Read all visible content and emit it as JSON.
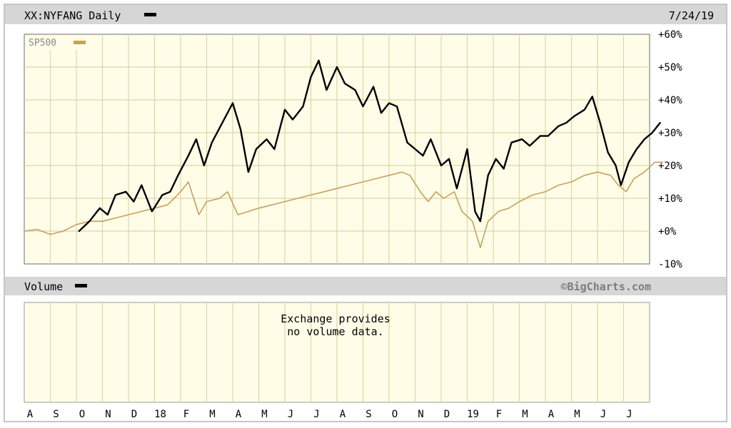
{
  "header": {
    "symbol_title": "XX:NYFANG Daily",
    "date": "7/24/19"
  },
  "legend": {
    "compare_label": "SP500"
  },
  "volume": {
    "label": "Volume",
    "message_line1": "Exchange provides",
    "message_line2": "no volume data.",
    "credit": "©BigCharts.com"
  },
  "colors": {
    "price_line": "#000000",
    "sp500_line": "#c8a05a",
    "plot_bg": "#fffde8",
    "grid": "#dcd7a6",
    "bar_bg": "#d4d4d4"
  },
  "chart_data": {
    "type": "line",
    "title": "XX:NYFANG Daily",
    "x_tick_labels": [
      "A",
      "S",
      "O",
      "N",
      "D",
      "18",
      "F",
      "M",
      "A",
      "M",
      "J",
      "J",
      "A",
      "S",
      "O",
      "N",
      "D",
      "19",
      "F",
      "M",
      "A",
      "M",
      "J",
      "J"
    ],
    "y_tick_labels": [
      "+60%",
      "+50%",
      "+40%",
      "+30%",
      "+20%",
      "+10%",
      "+0%",
      "-10%"
    ],
    "ylim": [
      -10,
      60
    ],
    "y_unit": "percent change",
    "grid": true,
    "legend_position": "top-left",
    "series": [
      {
        "name": "XX:NYFANG",
        "color": "#000000",
        "points": [
          [
            2.1,
            0
          ],
          [
            2.5,
            3
          ],
          [
            2.9,
            7
          ],
          [
            3.2,
            5
          ],
          [
            3.5,
            11
          ],
          [
            3.9,
            12
          ],
          [
            4.2,
            9
          ],
          [
            4.5,
            14
          ],
          [
            4.9,
            6
          ],
          [
            5.3,
            11
          ],
          [
            5.6,
            12
          ],
          [
            5.9,
            17
          ],
          [
            6.3,
            23
          ],
          [
            6.6,
            28
          ],
          [
            6.9,
            20
          ],
          [
            7.2,
            27
          ],
          [
            7.6,
            33
          ],
          [
            8.0,
            39
          ],
          [
            8.3,
            31
          ],
          [
            8.6,
            18
          ],
          [
            8.9,
            25
          ],
          [
            9.3,
            28
          ],
          [
            9.6,
            25
          ],
          [
            10.0,
            37
          ],
          [
            10.3,
            34
          ],
          [
            10.7,
            38
          ],
          [
            11.0,
            47
          ],
          [
            11.3,
            52
          ],
          [
            11.6,
            43
          ],
          [
            12.0,
            50
          ],
          [
            12.3,
            45
          ],
          [
            12.7,
            43
          ],
          [
            13.0,
            38
          ],
          [
            13.4,
            44
          ],
          [
            13.7,
            36
          ],
          [
            14.0,
            39
          ],
          [
            14.3,
            38
          ],
          [
            14.7,
            27
          ],
          [
            15.0,
            25
          ],
          [
            15.3,
            23
          ],
          [
            15.6,
            28
          ],
          [
            16.0,
            20
          ],
          [
            16.3,
            22
          ],
          [
            16.6,
            13
          ],
          [
            17.0,
            25
          ],
          [
            17.3,
            6
          ],
          [
            17.5,
            3
          ],
          [
            17.8,
            17
          ],
          [
            18.1,
            22
          ],
          [
            18.4,
            19
          ],
          [
            18.7,
            27
          ],
          [
            19.1,
            28
          ],
          [
            19.4,
            26
          ],
          [
            19.8,
            29
          ],
          [
            20.1,
            29
          ],
          [
            20.5,
            32
          ],
          [
            20.8,
            33
          ],
          [
            21.1,
            35
          ],
          [
            21.5,
            37
          ],
          [
            21.8,
            41
          ],
          [
            22.1,
            33
          ],
          [
            22.4,
            24
          ],
          [
            22.7,
            20
          ],
          [
            22.9,
            14
          ],
          [
            23.2,
            21
          ],
          [
            23.5,
            25
          ],
          [
            23.8,
            28
          ],
          [
            24.1,
            30
          ],
          [
            24.4,
            33
          ]
        ]
      },
      {
        "name": "SP500",
        "color": "#c8a05a",
        "points": [
          [
            0.0,
            0
          ],
          [
            0.5,
            0.5
          ],
          [
            1.0,
            -1
          ],
          [
            1.5,
            0
          ],
          [
            2.0,
            2
          ],
          [
            2.5,
            3
          ],
          [
            3.0,
            3
          ],
          [
            3.5,
            4
          ],
          [
            4.0,
            5
          ],
          [
            4.5,
            6
          ],
          [
            5.0,
            7
          ],
          [
            5.5,
            8
          ],
          [
            6.0,
            12
          ],
          [
            6.3,
            15
          ],
          [
            6.5,
            10
          ],
          [
            6.7,
            5
          ],
          [
            7.0,
            9
          ],
          [
            7.5,
            10
          ],
          [
            7.8,
            12
          ],
          [
            8.2,
            5
          ],
          [
            8.6,
            6
          ],
          [
            9.0,
            7
          ],
          [
            9.5,
            8
          ],
          [
            10.0,
            9
          ],
          [
            10.5,
            10
          ],
          [
            11.0,
            11
          ],
          [
            11.5,
            12
          ],
          [
            12.0,
            13
          ],
          [
            12.5,
            14
          ],
          [
            13.0,
            15
          ],
          [
            13.5,
            16
          ],
          [
            14.0,
            17
          ],
          [
            14.5,
            18
          ],
          [
            14.8,
            17
          ],
          [
            15.2,
            12
          ],
          [
            15.5,
            9
          ],
          [
            15.8,
            12
          ],
          [
            16.1,
            10
          ],
          [
            16.5,
            12
          ],
          [
            16.8,
            6
          ],
          [
            17.2,
            3
          ],
          [
            17.5,
            -5
          ],
          [
            17.8,
            3
          ],
          [
            18.2,
            6
          ],
          [
            18.6,
            7
          ],
          [
            19.0,
            9
          ],
          [
            19.5,
            11
          ],
          [
            20.0,
            12
          ],
          [
            20.5,
            14
          ],
          [
            21.0,
            15
          ],
          [
            21.5,
            17
          ],
          [
            22.0,
            18
          ],
          [
            22.5,
            17
          ],
          [
            22.8,
            14
          ],
          [
            23.1,
            12
          ],
          [
            23.4,
            16
          ],
          [
            23.8,
            18
          ],
          [
            24.2,
            21
          ],
          [
            24.5,
            21
          ]
        ]
      }
    ]
  }
}
